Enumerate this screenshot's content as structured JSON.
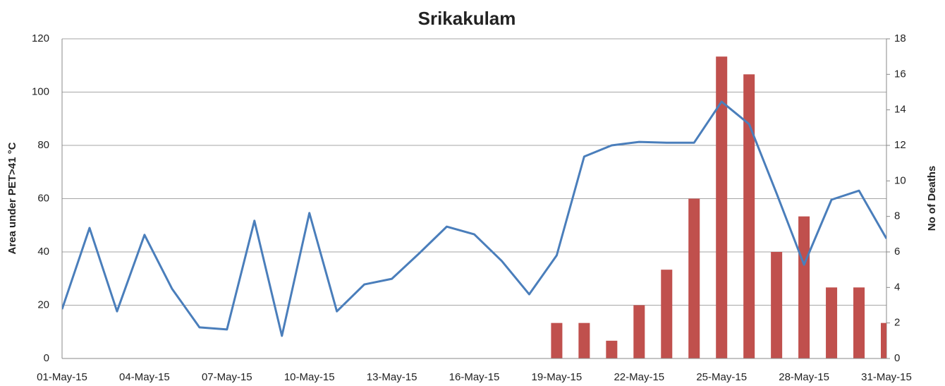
{
  "chart_data": {
    "type": "bar-line",
    "title": "Srikakulam",
    "y_label": "Area under PET>41 °C",
    "y2_label": "No of Deaths",
    "categories": [
      "01-May-15",
      null,
      null,
      "04-May-15",
      null,
      null,
      "07-May-15",
      null,
      null,
      "10-May-15",
      null,
      null,
      "13-May-15",
      null,
      null,
      "16-May-15",
      null,
      null,
      "19-May-15",
      null,
      null,
      "22-May-15",
      null,
      null,
      "25-May-15",
      null,
      null,
      "28-May-15",
      null,
      null,
      "31-May-15"
    ],
    "series": [
      {
        "type": "line",
        "color": "#4a7ebb",
        "values": [
          18.5,
          49,
          17.7,
          46.4,
          26.2,
          11.7,
          10.9,
          51.7,
          8.5,
          54.6,
          17.7,
          27.8,
          29.9,
          39.5,
          49.5,
          46.6,
          36.6,
          24.1,
          38.7,
          75.8,
          80,
          81.3,
          81,
          81,
          96.4,
          88,
          62,
          35.2,
          59.6,
          63,
          45
        ]
      },
      {
        "type": "bar",
        "axis": "y2",
        "color": "#c0504d",
        "values": [
          0,
          0,
          0,
          0,
          0,
          0,
          0,
          0,
          0,
          0,
          0,
          0,
          0,
          0,
          0,
          0,
          0,
          0,
          2,
          2,
          1,
          3,
          5,
          9,
          17,
          16,
          6,
          8,
          4,
          4,
          2
        ]
      }
    ],
    "ylim": [
      0,
      120
    ],
    "yticks": [
      0,
      20,
      40,
      60,
      80,
      100,
      120
    ],
    "y2lim": [
      0,
      18
    ],
    "y2ticks": [
      0,
      2,
      4,
      6,
      8,
      10,
      12,
      14,
      16,
      18
    ],
    "grid": true
  }
}
